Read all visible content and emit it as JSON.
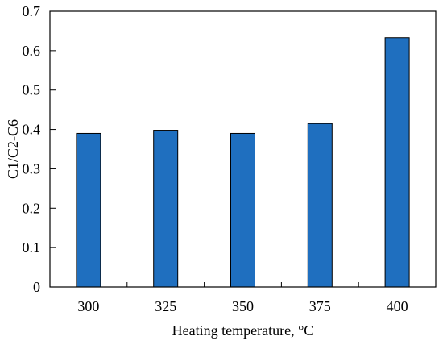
{
  "chart_data": {
    "type": "bar",
    "title": "",
    "xlabel": "Heating temperature, °C",
    "ylabel": "C1/C2-C6",
    "categories": [
      "300",
      "325",
      "350",
      "375",
      "400"
    ],
    "values": [
      0.39,
      0.398,
      0.39,
      0.415,
      0.633
    ],
    "ylim": [
      0,
      0.7
    ],
    "yticks": [
      "0",
      "0.1",
      "0.2",
      "0.3",
      "0.4",
      "0.5",
      "0.6",
      "0.7"
    ],
    "grid": false,
    "legend": "none",
    "bar_color": "#1f6fbf",
    "bar_edge_color": "#000000"
  }
}
